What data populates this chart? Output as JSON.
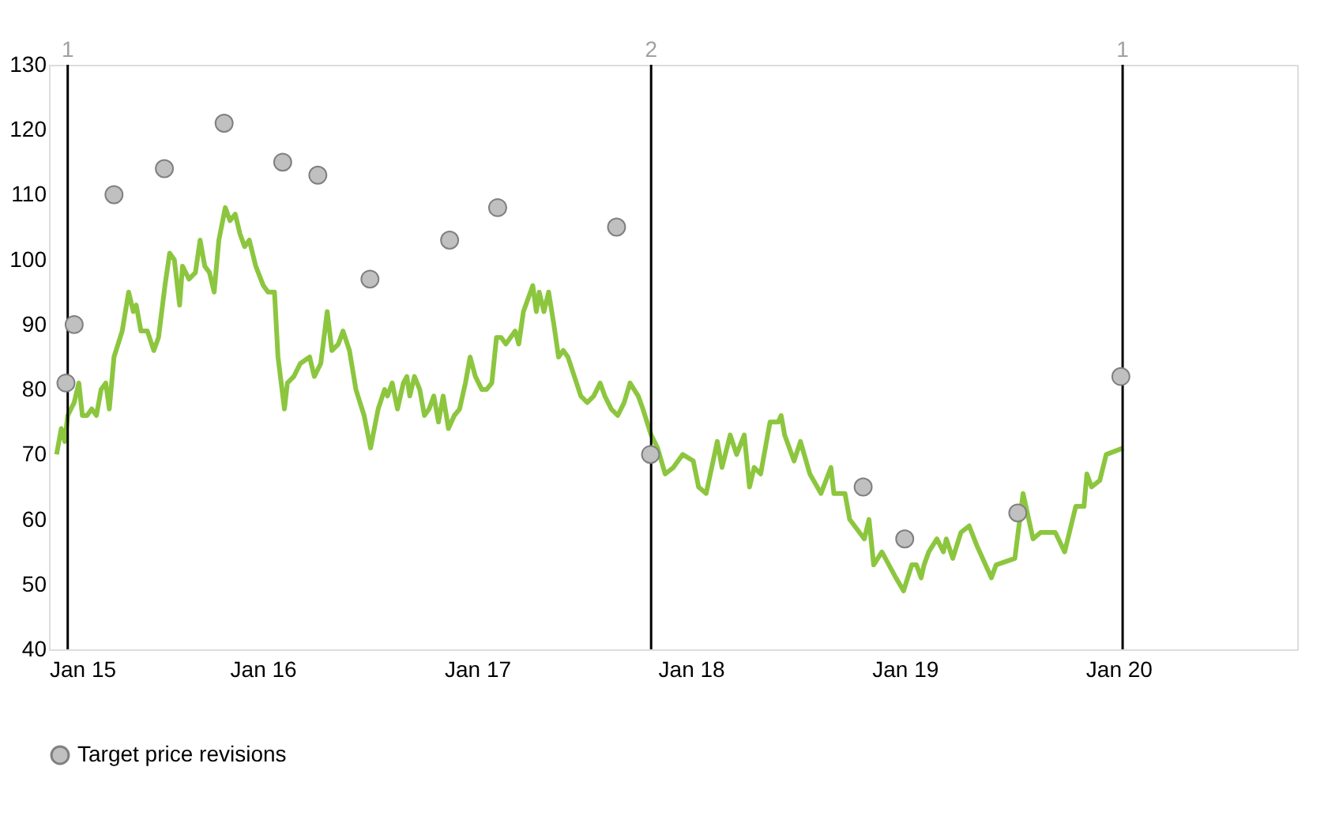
{
  "chart_data": {
    "type": "line",
    "xlim": [
      "2015-01-01",
      "2020-11-01"
    ],
    "ylim": [
      40,
      130
    ],
    "xticks": [
      {
        "value": "2015-01-01",
        "label": "Jan 15"
      },
      {
        "value": "2016-01-01",
        "label": "Jan 16"
      },
      {
        "value": "2017-01-01",
        "label": "Jan 17"
      },
      {
        "value": "2018-01-01",
        "label": "Jan 18"
      },
      {
        "value": "2019-01-01",
        "label": "Jan 19"
      },
      {
        "value": "2020-01-01",
        "label": "Jan 20"
      }
    ],
    "yticks": [
      40,
      50,
      60,
      70,
      80,
      90,
      100,
      110,
      120,
      130
    ],
    "grid": false,
    "legend": "bottom",
    "ref_lines": [
      {
        "axis": "x",
        "value": "2015-02-02",
        "label": "1",
        "color": "#000000"
      },
      {
        "axis": "x",
        "value": "2017-10-25",
        "label": "2",
        "color": "#000000"
      },
      {
        "axis": "x",
        "value": "2020-01-08",
        "label": "1",
        "color": "#000000"
      }
    ],
    "series": [
      {
        "type": "line",
        "color": "#8cc63f",
        "line_style": "solid",
        "x": [
          "2015-01-14",
          "2015-01-22",
          "2015-01-28",
          "2015-02-02",
          "2015-02-13",
          "2015-02-21",
          "2015-02-27",
          "2015-03-07",
          "2015-03-15",
          "2015-03-23",
          "2015-03-31",
          "2015-04-08",
          "2015-04-14",
          "2015-04-22",
          "2015-05-06",
          "2015-05-17",
          "2015-05-25",
          "2015-05-30",
          "2015-06-07",
          "2015-06-18",
          "2015-06-29",
          "2015-07-07",
          "2015-07-18",
          "2015-07-26",
          "2015-08-03",
          "2015-08-12",
          "2015-08-17",
          "2015-08-28",
          "2015-09-08",
          "2015-09-16",
          "2015-09-24",
          "2015-10-02",
          "2015-10-10",
          "2015-10-18",
          "2015-10-29",
          "2015-11-06",
          "2015-11-15",
          "2015-11-23",
          "2015-12-01",
          "2015-12-09",
          "2015-12-20",
          "2016-01-02",
          "2016-01-10",
          "2016-01-21",
          "2016-01-27",
          "2016-02-07",
          "2016-02-12",
          "2016-02-23",
          "2016-03-05",
          "2016-03-21",
          "2016-03-29",
          "2016-04-09",
          "2016-04-20",
          "2016-04-28",
          "2016-05-09",
          "2016-05-17",
          "2016-05-28",
          "2016-06-08",
          "2016-06-22",
          "2016-07-03",
          "2016-07-16",
          "2016-07-27",
          "2016-08-01",
          "2016-08-09",
          "2016-08-18",
          "2016-08-28",
          "2016-09-03",
          "2016-09-08",
          "2016-09-16",
          "2016-09-25",
          "2016-10-03",
          "2016-10-11",
          "2016-10-19",
          "2016-10-27",
          "2016-11-04",
          "2016-11-13",
          "2016-11-23",
          "2016-12-02",
          "2016-12-12",
          "2016-12-20",
          "2016-12-29",
          "2017-01-09",
          "2017-01-17",
          "2017-01-26",
          "2017-02-03",
          "2017-02-11",
          "2017-02-19",
          "2017-02-27",
          "2017-03-07",
          "2017-03-13",
          "2017-03-21",
          "2017-03-29",
          "2017-04-06",
          "2017-04-12",
          "2017-04-17",
          "2017-04-25",
          "2017-05-03",
          "2017-05-12",
          "2017-05-20",
          "2017-05-28",
          "2017-06-05",
          "2017-06-16",
          "2017-06-27",
          "2017-07-08",
          "2017-07-19",
          "2017-07-30",
          "2017-08-07",
          "2017-08-18",
          "2017-08-29",
          "2017-09-09",
          "2017-09-19",
          "2017-10-03",
          "2017-10-11",
          "2017-10-25",
          "2017-11-05",
          "2017-11-18",
          "2017-12-02",
          "2017-12-18",
          "2018-01-05",
          "2018-01-14",
          "2018-01-27",
          "2018-02-15",
          "2018-02-23",
          "2018-03-09",
          "2018-03-20",
          "2018-04-02",
          "2018-04-11",
          "2018-04-19",
          "2018-04-30",
          "2018-05-16",
          "2018-05-30",
          "2018-06-04",
          "2018-06-10",
          "2018-06-26",
          "2018-07-07",
          "2018-07-23",
          "2018-08-11",
          "2018-08-28",
          "2018-09-02",
          "2018-09-21",
          "2018-09-29",
          "2018-10-24",
          "2018-11-01",
          "2018-11-09",
          "2018-11-23",
          "2018-12-17",
          "2018-12-30",
          "2019-01-13",
          "2019-01-21",
          "2019-01-29",
          "2019-02-03",
          "2019-02-11",
          "2019-02-25",
          "2019-03-08",
          "2019-03-13",
          "2019-03-24",
          "2019-04-07",
          "2019-04-21",
          "2019-05-04",
          "2019-05-29",
          "2019-06-06",
          "2019-07-08",
          "2019-07-22",
          "2019-08-08",
          "2019-08-21",
          "2019-09-15",
          "2019-10-01",
          "2019-10-20",
          "2019-11-03",
          "2019-11-08",
          "2019-11-16",
          "2019-11-30",
          "2019-12-11",
          "2020-01-09"
        ],
        "values": [
          70,
          74,
          72,
          76,
          78,
          81,
          76,
          76,
          77,
          76,
          80,
          81,
          77,
          85,
          89,
          95,
          92,
          93,
          89,
          89,
          86,
          88,
          96,
          101,
          100,
          93,
          99,
          97,
          98,
          103,
          99,
          98,
          95,
          103,
          108,
          106,
          107,
          104,
          102,
          103,
          99,
          96,
          95,
          95,
          85,
          77,
          81,
          82,
          84,
          85,
          82,
          84,
          92,
          86,
          87,
          89,
          86,
          80,
          76,
          71,
          77,
          80,
          79,
          81,
          77,
          81,
          82,
          79,
          82,
          80,
          76,
          77,
          79,
          75,
          79,
          74,
          76,
          77,
          81,
          85,
          82,
          80,
          80,
          81,
          88,
          88,
          87,
          88,
          89,
          87,
          92,
          94,
          96,
          92,
          95,
          92,
          95,
          90,
          85,
          86,
          85,
          82,
          79,
          78,
          79,
          81,
          79,
          77,
          76,
          78,
          81,
          79,
          77,
          73,
          71,
          67,
          68,
          70,
          69,
          65,
          64,
          72,
          68,
          73,
          70,
          73,
          65,
          68,
          67,
          75,
          75,
          76,
          73,
          69,
          72,
          67,
          64,
          68,
          64,
          64,
          60,
          57,
          60,
          53,
          55,
          51,
          49,
          53,
          53,
          51,
          53,
          55,
          57,
          55,
          57,
          54,
          58,
          59,
          56,
          51,
          53,
          54,
          64,
          57,
          58,
          58,
          55,
          62,
          62,
          67,
          65,
          66,
          70,
          71
        ]
      },
      {
        "type": "scatter",
        "name": "Target price revisions",
        "color": "#c0c0c0",
        "marker": "circle",
        "x": [
          "2015-01-30",
          "2015-02-13",
          "2015-04-22",
          "2015-07-17",
          "2015-10-27",
          "2016-02-04",
          "2016-04-04",
          "2016-07-02",
          "2016-11-15",
          "2017-02-05",
          "2017-08-27",
          "2017-10-24",
          "2018-10-22",
          "2019-01-01",
          "2019-07-13",
          "2020-01-05"
        ],
        "values": [
          81,
          90,
          110,
          114,
          121,
          115,
          113,
          97,
          103,
          108,
          105,
          70,
          65,
          57,
          61,
          82
        ]
      }
    ]
  }
}
